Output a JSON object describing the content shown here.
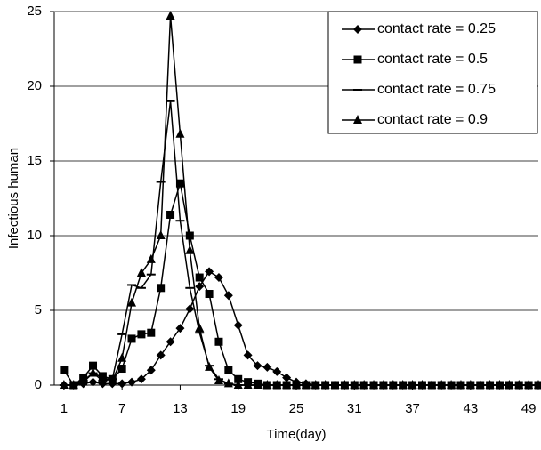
{
  "chart_data": {
    "type": "line",
    "xlabel": "Time(day)",
    "ylabel": "Infectious human",
    "x": [
      1,
      2,
      3,
      4,
      5,
      6,
      7,
      8,
      9,
      10,
      11,
      12,
      13,
      14,
      15,
      16,
      17,
      18,
      19,
      20,
      21,
      22,
      23,
      24,
      25,
      26,
      27,
      28,
      29,
      30,
      31,
      32,
      33,
      34,
      35,
      36,
      37,
      38,
      39,
      40,
      41,
      42,
      43,
      44,
      45,
      46,
      47,
      48,
      49,
      50
    ],
    "xlim": [
      0,
      50
    ],
    "xticks": [
      1,
      7,
      13,
      19,
      25,
      31,
      37,
      43,
      49
    ],
    "ylim": [
      0,
      25
    ],
    "yticks": [
      0,
      5,
      10,
      15,
      20,
      25
    ],
    "grid": true,
    "legend": "upper right",
    "series": [
      {
        "name": "contact rate = 0.25",
        "color": "#000000",
        "marker": "diamond",
        "values": [
          0,
          0,
          0.1,
          0.2,
          0.1,
          0.1,
          0.1,
          0.2,
          0.4,
          1.0,
          2.0,
          2.9,
          3.8,
          5.1,
          6.6,
          7.6,
          7.2,
          6.0,
          4.0,
          2.0,
          1.3,
          1.2,
          0.9,
          0.5,
          0.2,
          0.1,
          0,
          0,
          0,
          0,
          0,
          0,
          0,
          0,
          0,
          0,
          0,
          0,
          0,
          0,
          0,
          0,
          0,
          0,
          0,
          0,
          0,
          0,
          0,
          0
        ]
      },
      {
        "name": "contact rate = 0.5",
        "color": "#000000",
        "marker": "square",
        "values": [
          1.0,
          0,
          0.5,
          1.3,
          0.6,
          0.4,
          1.1,
          3.1,
          3.4,
          3.5,
          6.5,
          11.4,
          13.5,
          10.0,
          7.2,
          6.1,
          2.9,
          1.0,
          0.4,
          0.2,
          0.1,
          0,
          0,
          0,
          0,
          0,
          0,
          0,
          0,
          0,
          0,
          0,
          0,
          0,
          0,
          0,
          0,
          0,
          0,
          0,
          0,
          0,
          0,
          0,
          0,
          0,
          0,
          0,
          0,
          0
        ]
      },
      {
        "name": "contact rate = 0.75",
        "color": "#000000",
        "marker": "dash",
        "values": [
          0,
          0,
          0.3,
          0.8,
          0.3,
          0.4,
          3.4,
          6.7,
          6.5,
          7.4,
          13.6,
          19.0,
          11.0,
          6.5,
          3.5,
          1.3,
          0.4,
          0.1,
          0,
          0,
          0,
          0,
          0,
          0,
          0,
          0,
          0,
          0,
          0,
          0,
          0,
          0,
          0,
          0,
          0,
          0,
          0,
          0,
          0,
          0,
          0,
          0,
          0,
          0,
          0,
          0,
          0,
          0,
          0,
          0
        ]
      },
      {
        "name": "contact rate = 0.9",
        "color": "#000000",
        "marker": "triangle",
        "values": [
          0,
          0,
          0.2,
          0.8,
          0.5,
          0.3,
          1.8,
          5.5,
          7.5,
          8.4,
          10.0,
          24.7,
          16.8,
          9.0,
          3.8,
          1.2,
          0.3,
          0.1,
          0,
          0,
          0,
          0,
          0,
          0,
          0,
          0,
          0,
          0,
          0,
          0,
          0,
          0,
          0,
          0,
          0,
          0,
          0,
          0,
          0,
          0,
          0,
          0,
          0,
          0,
          0,
          0,
          0,
          0,
          0,
          0
        ]
      }
    ]
  }
}
